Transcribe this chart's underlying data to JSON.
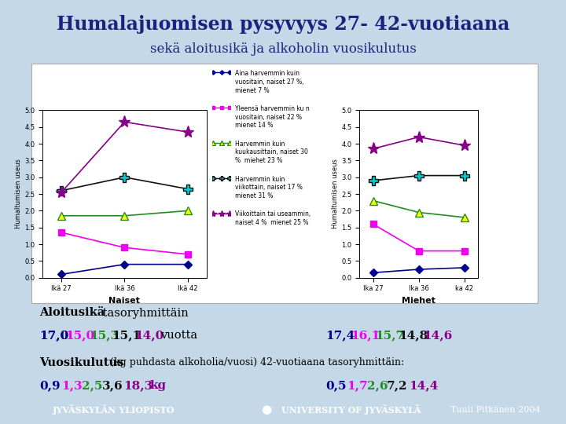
{
  "title": "Humalajuomisen pysyvyys 27- 42-vuotiaana",
  "subtitle": "sekä aloitusikä ja alkoholin vuosikulutus",
  "bg_color": "#c5d8e8",
  "x_labels_naiset": [
    "Ikä 27",
    "Ikä 36",
    "Ikä 42"
  ],
  "x_labels_miehet": [
    "Ika 27",
    "Ika 36",
    "ka 42"
  ],
  "ylabel": "Humaltumisen useus",
  "xlabel_naiset": "Naiset",
  "xlabel_miehet": "Miehet",
  "series": [
    {
      "label_l1": "Aina harvemmin kuin",
      "label_l2": "vuositain, naiset 27 %,",
      "label_l3": "mienet 7 %",
      "color": "#00008B",
      "marker": "D",
      "ms": 5,
      "mfc": "#00008B",
      "naiset": [
        0.1,
        0.4,
        0.4
      ],
      "miehet": [
        0.15,
        0.25,
        0.3
      ]
    },
    {
      "label_l1": "Yleensä harvemmin ku n",
      "label_l2": "vuositain, naiset 22 %",
      "label_l3": "mienet 14 %",
      "color": "#EE00EE",
      "marker": "s",
      "ms": 6,
      "mfc": "#EE00EE",
      "naiset": [
        1.35,
        0.9,
        0.7
      ],
      "miehet": [
        1.6,
        0.8,
        0.8
      ]
    },
    {
      "label_l1": "Harvemmin kuin",
      "label_l2": "kuukausittain, naiset 30",
      "label_l3": "%  miehet 23 %",
      "color": "#228B22",
      "marker": "^",
      "ms": 7,
      "mfc": "#FFFF00",
      "naiset": [
        1.85,
        1.85,
        2.0
      ],
      "miehet": [
        2.3,
        1.95,
        1.8
      ]
    },
    {
      "label_l1": "Harvemmin kuin",
      "label_l2": "viikottain, naiset 17 %",
      "label_l3": "mienet 31 %",
      "color": "#111111",
      "marker": "P",
      "ms": 8,
      "mfc": "#00CCCC",
      "naiset": [
        2.6,
        3.0,
        2.65
      ],
      "miehet": [
        2.9,
        3.05,
        3.05
      ]
    },
    {
      "label_l1": "Viikoittain tai useammin,",
      "label_l2": "naiset 4 %  mienet 25 %",
      "label_l3": "",
      "color": "#880088",
      "marker": "*",
      "ms": 11,
      "mfc": "#880088",
      "naiset": [
        2.55,
        4.65,
        4.35
      ],
      "miehet": [
        3.85,
        4.2,
        3.95
      ]
    }
  ],
  "aloitusika_naiset": [
    {
      "val": "17,0",
      "color": "#00008B",
      "ul": true
    },
    {
      "val": "15,0",
      "color": "#EE00EE",
      "ul": false
    },
    {
      "val": "15,3",
      "color": "#228B22",
      "ul": false
    },
    {
      "val": "15,1",
      "color": "#111111",
      "ul": false
    },
    {
      "val": "14,0",
      "color": "#880088",
      "ul": false
    }
  ],
  "aloitusika_miehet": [
    {
      "val": "17,4",
      "color": "#00008B",
      "ul": true
    },
    {
      "val": "16,1",
      "color": "#EE00EE",
      "ul": true
    },
    {
      "val": "15,7",
      "color": "#228B22",
      "ul": false
    },
    {
      "val": "14,8",
      "color": "#111111",
      "ul": false
    },
    {
      "val": "14,6",
      "color": "#880088",
      "ul": false
    }
  ],
  "vuosi_naiset": [
    {
      "val": "0,9",
      "color": "#00008B"
    },
    {
      "val": "1,3",
      "color": "#EE00EE"
    },
    {
      "val": "2,5",
      "color": "#228B22"
    },
    {
      "val": "3,6",
      "color": "#111111"
    },
    {
      "val": "18,3",
      "color": "#880088"
    }
  ],
  "vuosi_miehet": [
    {
      "val": "0,5",
      "color": "#00008B"
    },
    {
      "val": "1,7",
      "color": "#EE00EE"
    },
    {
      "val": "2,6",
      "color": "#228B22"
    },
    {
      "val": "7,2",
      "color": "#111111"
    },
    {
      "val": "14,4",
      "color": "#880088"
    }
  ],
  "footer_left": "JYVÄSKYLÄN YLIOPISTO",
  "footer_mid": "UNIVERSITY OF JYVÄSKYLÄ",
  "footer_right": "Tuuli Pitkänen 2004",
  "footer_bg": "#1a237e"
}
